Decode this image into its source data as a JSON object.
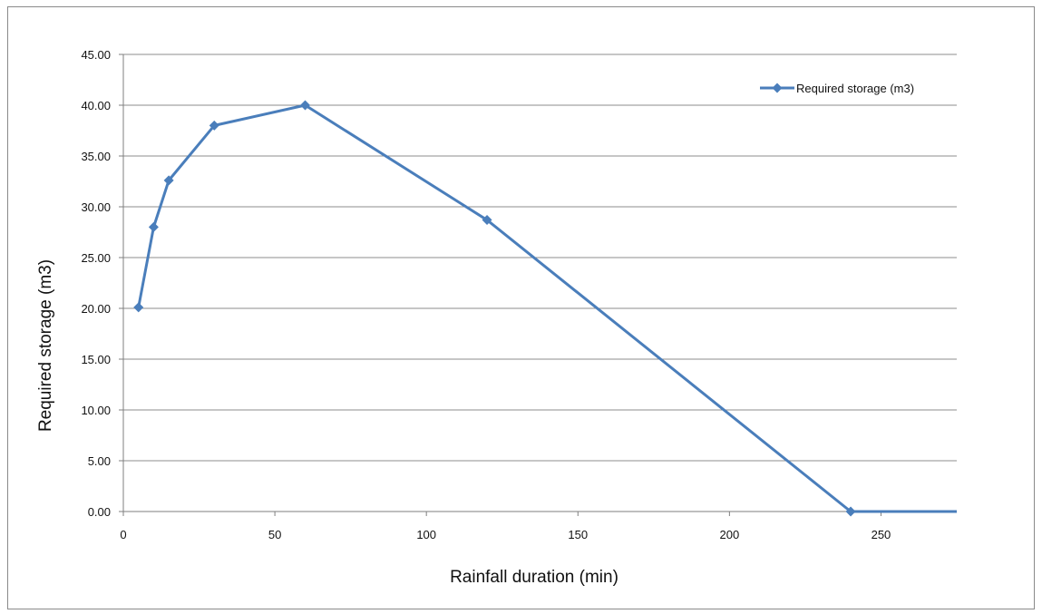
{
  "chart_data": {
    "type": "line",
    "title": "",
    "xlabel": "Rainfall duration (min)",
    "ylabel": "Required storage (m3)",
    "xlim": [
      0,
      275
    ],
    "ylim": [
      0,
      45
    ],
    "xticks": [
      0,
      50,
      100,
      150,
      200,
      250
    ],
    "yticks": [
      "0.00",
      "5.00",
      "10.00",
      "15.00",
      "20.00",
      "25.00",
      "30.00",
      "35.00",
      "40.00",
      "45.00"
    ],
    "grid": "horizontal",
    "legend_position": "top-right",
    "series": [
      {
        "name": "Required storage (m3)",
        "color": "#4a7ebb",
        "marker": "diamond",
        "x": [
          5,
          10,
          15,
          30,
          60,
          120,
          240
        ],
        "y": [
          20.1,
          28.0,
          32.6,
          38.0,
          40.0,
          28.7,
          0.0
        ]
      }
    ],
    "tail_line_to_x": 275
  }
}
